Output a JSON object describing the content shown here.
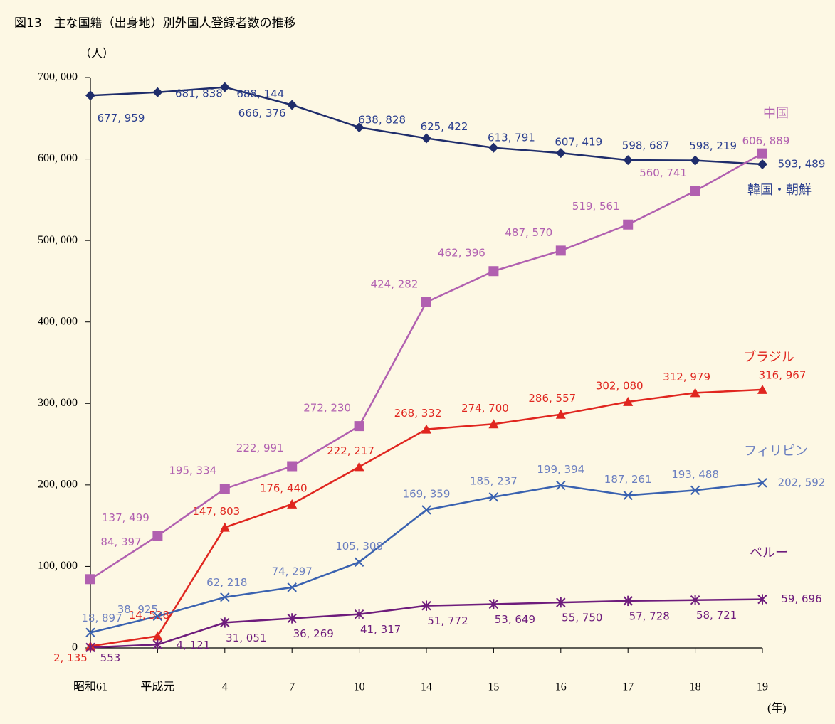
{
  "chart_data": {
    "type": "line",
    "title": "図13　主な国籍（出身地）別外国人登録者数の推移",
    "y_unit": "（人）",
    "x_unit": "(年)",
    "categories": [
      "昭和61",
      "平成元",
      "4",
      "7",
      "10",
      "14",
      "15",
      "16",
      "17",
      "18",
      "19"
    ],
    "ylim": [
      0,
      700000
    ],
    "yticks": [
      0,
      {
        "value": 100000,
        "label": "100, 000"
      },
      {
        "value": 200000,
        "label": "200, 000"
      },
      {
        "value": 300000,
        "label": "300, 000"
      },
      {
        "value": 400000,
        "label": "400, 000"
      },
      {
        "value": 500000,
        "label": "500, 000"
      },
      {
        "value": 600000,
        "label": "600, 000"
      },
      {
        "value": 700000,
        "label": "700, 000"
      }
    ],
    "grid": false,
    "series": [
      {
        "name": "韓国・朝鮮",
        "color": "#1f2d6b",
        "label_color": "#2b3f8f",
        "marker": "diamond",
        "values": [
          677959,
          681838,
          688144,
          666376,
          638828,
          625422,
          613791,
          607419,
          598687,
          598219,
          593489
        ],
        "value_labels": [
          "677, 959",
          "681, 838",
          "688, 144",
          "666, 376",
          "638, 828",
          "625, 422",
          "613, 791",
          "607, 419",
          "598, 687",
          "598, 219",
          "593, 489"
        ]
      },
      {
        "name": "中国",
        "color": "#b160b0",
        "label_color": "#b160b0",
        "marker": "square",
        "values": [
          84397,
          137499,
          195334,
          222991,
          272230,
          424282,
          462396,
          487570,
          519561,
          560741,
          606889
        ],
        "value_labels": [
          "84, 397",
          "137, 499",
          "195, 334",
          "222, 991",
          "272, 230",
          "424, 282",
          "462, 396",
          "487, 570",
          "519, 561",
          "560, 741",
          "606, 889"
        ]
      },
      {
        "name": "ブラジル",
        "color": "#e0261f",
        "label_color": "#e0261f",
        "marker": "triangle",
        "values": [
          2135,
          14528,
          147803,
          176440,
          222217,
          268332,
          274700,
          286557,
          302080,
          312979,
          316967
        ],
        "value_labels": [
          "2, 135",
          "14, 528",
          "147, 803",
          "176, 440",
          "222, 217",
          "268, 332",
          "274, 700",
          "286, 557",
          "302, 080",
          "312, 979",
          "316, 967"
        ]
      },
      {
        "name": "フィリピン",
        "color": "#3a62b0",
        "label_color": "#6b7fc0",
        "marker": "x",
        "values": [
          18897,
          38925,
          62218,
          74297,
          105308,
          169359,
          185237,
          199394,
          187261,
          193488,
          202592
        ],
        "value_labels": [
          "18, 897",
          "38, 925",
          "62, 218",
          "74, 297",
          "105, 308",
          "169, 359",
          "185, 237",
          "199, 394",
          "187, 261",
          "193, 488",
          "202, 592"
        ]
      },
      {
        "name": "ペルー",
        "color": "#6e1c7c",
        "label_color": "#6e1c7c",
        "marker": "asterisk",
        "values": [
          553,
          4121,
          31051,
          36269,
          41317,
          51772,
          53649,
          55750,
          57728,
          58721,
          59696
        ],
        "value_labels": [
          "553",
          "4, 121",
          "31, 051",
          "36, 269",
          "41, 317",
          "51, 772",
          "53, 649",
          "55, 750",
          "57, 728",
          "58, 721",
          "59, 696"
        ]
      }
    ]
  }
}
